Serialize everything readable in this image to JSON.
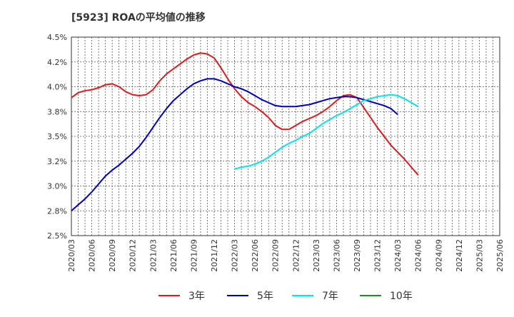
{
  "title": "[5923]  ROAの平均値の推移",
  "chart_data": {
    "type": "line",
    "title": "[5923]  ROAの平均値の推移",
    "ylim": [
      2.5,
      4.5
    ],
    "y_ticks": [
      2.5,
      2.75,
      3.0,
      3.25,
      3.5,
      3.75,
      4.0,
      4.25,
      4.5
    ],
    "y_tick_labels": [
      "2.5%",
      "2.8%",
      "3.0%",
      "3.2%",
      "3.5%",
      "3.8%",
      "4.0%",
      "4.2%",
      "4.5%"
    ],
    "x_tick_labels": [
      "2020/03",
      "2020/06",
      "2020/09",
      "2020/12",
      "2021/03",
      "2021/06",
      "2021/09",
      "2021/12",
      "2022/03",
      "2022/06",
      "2022/09",
      "2022/12",
      "2023/03",
      "2023/06",
      "2023/09",
      "2023/12",
      "2024/03",
      "2024/06",
      "2024/09",
      "2024/12",
      "2025/03",
      "2025/06"
    ],
    "grid": true,
    "legend_position": "bottom",
    "series": [
      {
        "name": "3年",
        "color": "#e31a1c",
        "start": "2020/03",
        "values": [
          3.89,
          3.94,
          3.96,
          3.97,
          3.99,
          4.02,
          4.03,
          4.0,
          3.95,
          3.92,
          3.91,
          3.92,
          3.97,
          4.06,
          4.13,
          4.18,
          4.23,
          4.28,
          4.32,
          4.34,
          4.33,
          4.29,
          4.19,
          4.08,
          3.98,
          3.9,
          3.84,
          3.8,
          3.75,
          3.69,
          3.61,
          3.57,
          3.57,
          3.61,
          3.65,
          3.68,
          3.71,
          3.75,
          3.8,
          3.86,
          3.91,
          3.92,
          3.89,
          3.79,
          3.69,
          3.59,
          3.5,
          3.41,
          3.34,
          3.27,
          3.19,
          3.11
        ]
      },
      {
        "name": "5年",
        "color": "#0000cc",
        "start": "2020/03",
        "values": [
          2.75,
          2.81,
          2.87,
          2.94,
          3.02,
          3.1,
          3.16,
          3.21,
          3.27,
          3.33,
          3.4,
          3.49,
          3.59,
          3.69,
          3.78,
          3.86,
          3.92,
          3.98,
          4.03,
          4.06,
          4.08,
          4.08,
          4.06,
          4.03,
          4.0,
          3.98,
          3.95,
          3.91,
          3.87,
          3.84,
          3.81,
          3.8,
          3.8,
          3.8,
          3.81,
          3.82,
          3.84,
          3.86,
          3.88,
          3.89,
          3.9,
          3.9,
          3.89,
          3.87,
          3.85,
          3.83,
          3.81,
          3.78,
          3.72
        ]
      },
      {
        "name": "7年",
        "color": "#00e5ee",
        "start": "2022/03",
        "values": [
          3.17,
          3.19,
          3.2,
          3.22,
          3.25,
          3.29,
          3.34,
          3.39,
          3.43,
          3.46,
          3.5,
          3.53,
          3.58,
          3.63,
          3.67,
          3.71,
          3.74,
          3.78,
          3.82,
          3.86,
          3.88,
          3.9,
          3.91,
          3.92,
          3.91,
          3.88,
          3.84,
          3.8
        ]
      },
      {
        "name": "10年",
        "color": "#228b22",
        "start": "",
        "values": []
      }
    ]
  }
}
